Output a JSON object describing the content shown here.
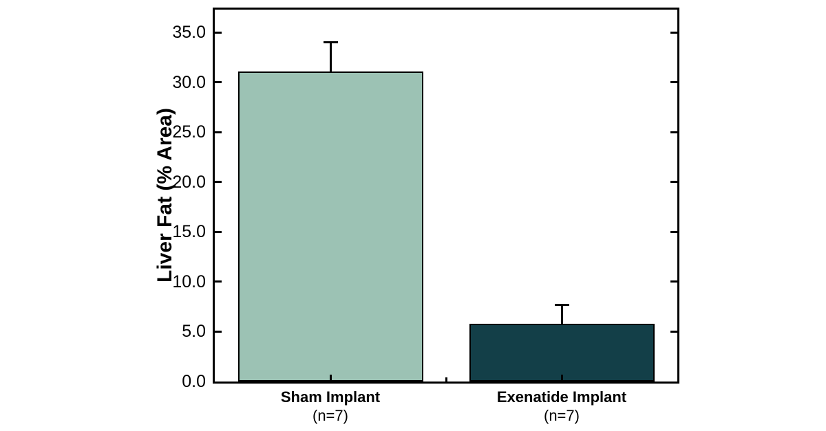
{
  "figure": {
    "background_color": "#ffffff",
    "axis_color": "#000000",
    "text_color": "#000000"
  },
  "chart_data": {
    "type": "bar",
    "title": "",
    "xlabel": "",
    "ylabel": "Liver Fat (% Area)",
    "ylim": [
      0,
      37.3
    ],
    "yticks": [
      0,
      5,
      10,
      15,
      20,
      25,
      30,
      35
    ],
    "ytick_labels": [
      "0.0",
      "5.0",
      "10.0",
      "15.0",
      "20.0",
      "25.0",
      "30.0",
      "35.0"
    ],
    "grid": false,
    "legend": null,
    "categories": [
      {
        "label": "Sham Implant",
        "sublabel": "(n=7)"
      },
      {
        "label": "Exenatide Implant",
        "sublabel": "(n=7)"
      }
    ],
    "series": [
      {
        "name": "Liver Fat (% Area)",
        "values": [
          31.1,
          5.8
        ],
        "errors_plus": [
          3.0,
          2.0
        ],
        "colors": [
          "#9cc2b4",
          "#133f48"
        ]
      }
    ],
    "bar_border_color": "#000000",
    "error_bar_color": "#000000"
  }
}
